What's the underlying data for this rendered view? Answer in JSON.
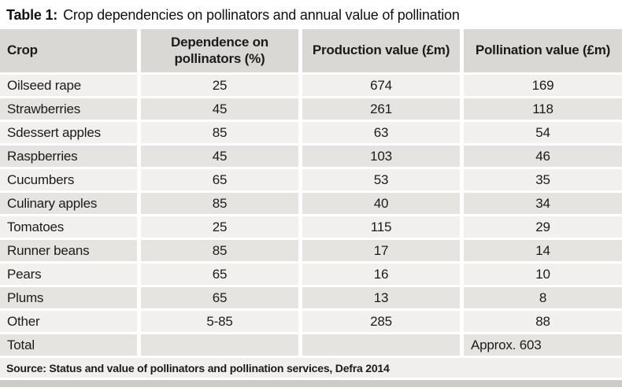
{
  "title": {
    "label": "Table 1:",
    "text": "Crop dependencies on pollinators and annual value of pollination"
  },
  "table": {
    "columns": [
      "Crop",
      "Dependence on pollinators (%)",
      "Production value (£m)",
      "Pollination value (£m)"
    ],
    "rows": [
      {
        "crop": "Oilseed rape",
        "dependence": "25",
        "production": "674",
        "pollination": "169"
      },
      {
        "crop": "Strawberries",
        "dependence": "45",
        "production": "261",
        "pollination": "118"
      },
      {
        "crop": "Sdessert apples",
        "dependence": "85",
        "production": "63",
        "pollination": "54"
      },
      {
        "crop": "Raspberries",
        "dependence": "45",
        "production": "103",
        "pollination": "46"
      },
      {
        "crop": "Cucumbers",
        "dependence": "65",
        "production": "53",
        "pollination": "35"
      },
      {
        "crop": "Culinary apples",
        "dependence": "85",
        "production": "40",
        "pollination": "34"
      },
      {
        "crop": "Tomatoes",
        "dependence": "25",
        "production": "115",
        "pollination": "29"
      },
      {
        "crop": "Runner beans",
        "dependence": "85",
        "production": "17",
        "pollination": "14"
      },
      {
        "crop": "Pears",
        "dependence": "65",
        "production": "16",
        "pollination": "10"
      },
      {
        "crop": "Plums",
        "dependence": "65",
        "production": "13",
        "pollination": "8"
      },
      {
        "crop": "Other",
        "dependence": "5-85",
        "production": "285",
        "pollination": "88"
      },
      {
        "crop": "Total",
        "dependence": "",
        "production": "",
        "pollination": "Approx. 603",
        "is_total": true
      }
    ]
  },
  "source": "Source: Status and value of pollinators and pollination services, Defra 2014",
  "colors": {
    "header_bg": "#d9d8d5",
    "row_light": "#f1f0ee",
    "row_dark": "#e5e4e1",
    "source_bg": "#f0efed",
    "footer_bar": "#cccbc8",
    "text": "#1b1b1b"
  }
}
